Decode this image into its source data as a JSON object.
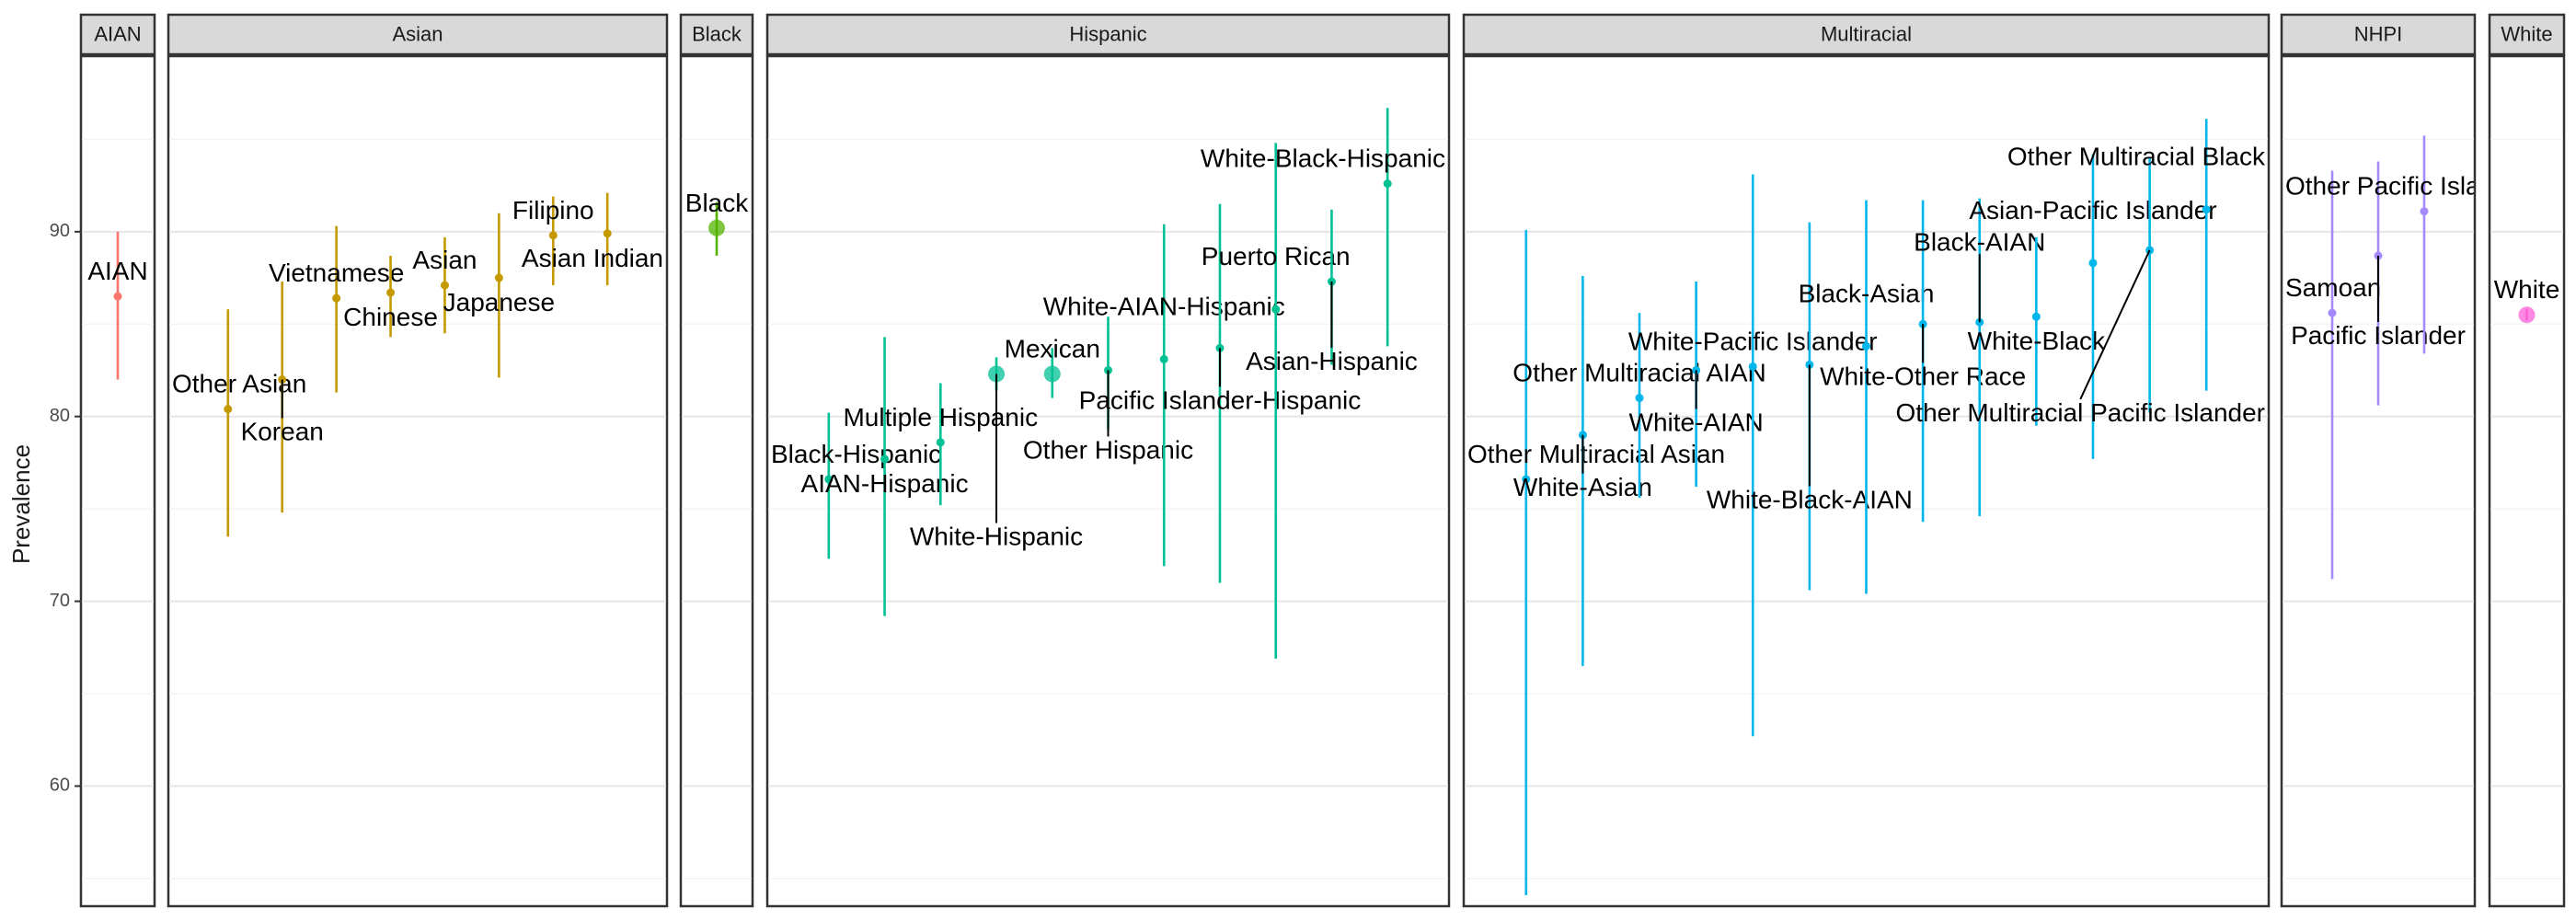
{
  "chart_data": {
    "type": "scatter",
    "ylabel": "Prevalence",
    "ylim": [
      53.5,
      99.5
    ],
    "yticks": [
      60,
      70,
      80,
      90
    ],
    "grid": true,
    "legend": "none",
    "panels": [
      {
        "name": "AIAN",
        "color": "#F8766D",
        "points": [
          {
            "label": "AIAN",
            "value": 86.5,
            "lower": 82.0,
            "upper": 90.0
          }
        ]
      },
      {
        "name": "Asian",
        "color": "#C49A00",
        "points": [
          {
            "label": "Other Asian",
            "value": 80.4,
            "lower": 73.5,
            "upper": 85.8
          },
          {
            "label": "Korean",
            "value": 82.0,
            "lower": 74.8,
            "upper": 87.3
          },
          {
            "label": "Vietnamese",
            "value": 86.4,
            "lower": 81.3,
            "upper": 90.3
          },
          {
            "label": "Chinese",
            "value": 86.7,
            "lower": 84.3,
            "upper": 88.7
          },
          {
            "label": "Asian",
            "value": 87.1,
            "lower": 84.5,
            "upper": 89.7
          },
          {
            "label": "Japanese",
            "value": 87.5,
            "lower": 82.1,
            "upper": 91.0
          },
          {
            "label": "Filipino",
            "value": 89.8,
            "lower": 87.1,
            "upper": 91.9
          },
          {
            "label": "Asian Indian",
            "value": 89.9,
            "lower": 87.1,
            "upper": 92.1
          }
        ]
      },
      {
        "name": "Black",
        "color": "#53B400",
        "points": [
          {
            "label": "Black",
            "value": 90.2,
            "lower": 88.7,
            "upper": 91.6
          }
        ]
      },
      {
        "name": "Hispanic",
        "color": "#00C094",
        "points": [
          {
            "label": "Black-Hispanic",
            "value": 76.6,
            "lower": 72.3,
            "upper": 80.2
          },
          {
            "label": "AIAN-Hispanic",
            "value": 77.7,
            "lower": 69.2,
            "upper": 84.3
          },
          {
            "label": "Multiple Hispanic",
            "value": 78.6,
            "lower": 75.2,
            "upper": 81.8
          },
          {
            "label": "White-Hispanic",
            "value": 82.3,
            "lower": 81.4,
            "upper": 83.2
          },
          {
            "label": "Mexican",
            "value": 82.3,
            "lower": 81.0,
            "upper": 83.7
          },
          {
            "label": "Other Hispanic",
            "value": 82.5,
            "lower": 79.3,
            "upper": 85.4
          },
          {
            "label": "White-AIAN-Hispanic",
            "value": 83.1,
            "lower": 71.9,
            "upper": 90.4
          },
          {
            "label": "Pacific Islander-Hispanic",
            "value": 83.7,
            "lower": 71.0,
            "upper": 91.5
          },
          {
            "label": "Puerto Rican",
            "value": 85.8,
            "lower": 66.9,
            "upper": 94.8
          },
          {
            "label": "Asian-Hispanic",
            "value": 87.3,
            "lower": 82.8,
            "upper": 91.2
          },
          {
            "label": "White-Black-Hispanic",
            "value": 92.6,
            "lower": 83.8,
            "upper": 96.7
          }
        ]
      },
      {
        "name": "Multiracial",
        "color": "#00B6EB",
        "points": [
          {
            "label": "Other Multiracial Asian",
            "value": 76.6,
            "lower": 54.1,
            "upper": 90.1
          },
          {
            "label": "White-Asian",
            "value": 79.0,
            "lower": 66.5,
            "upper": 87.6
          },
          {
            "label": "Other Multiracial AIAN",
            "value": 81.0,
            "lower": 75.6,
            "upper": 85.6
          },
          {
            "label": "White-AIAN",
            "value": 82.5,
            "lower": 76.2,
            "upper": 87.3
          },
          {
            "label": "White-Pacific Islander",
            "value": 82.7,
            "lower": 62.7,
            "upper": 93.1
          },
          {
            "label": "White-Black-AIAN",
            "value": 82.8,
            "lower": 70.6,
            "upper": 90.5
          },
          {
            "label": "Black-Asian",
            "value": 83.8,
            "lower": 70.4,
            "upper": 91.7
          },
          {
            "label": "White-Other Race",
            "value": 85.0,
            "lower": 74.3,
            "upper": 91.7
          },
          {
            "label": "Black-AIAN",
            "value": 85.1,
            "lower": 74.6,
            "upper": 91.8
          },
          {
            "label": "White-Black",
            "value": 85.4,
            "lower": 79.5,
            "upper": 89.7
          },
          {
            "label": "Asian-Pacific Islander",
            "value": 88.3,
            "lower": 77.7,
            "upper": 94.2
          },
          {
            "label": "Other Multiracial Pacific Islander",
            "value": 89.0,
            "lower": 80.2,
            "upper": 94.0
          },
          {
            "label": "Other Multiracial Black",
            "value": 91.2,
            "lower": 81.4,
            "upper": 96.1
          }
        ]
      },
      {
        "name": "NHPI",
        "color": "#A58AFF",
        "points": [
          {
            "label": "Samoan",
            "value": 85.6,
            "lower": 71.2,
            "upper": 93.3
          },
          {
            "label": "Pacific Islander",
            "value": 88.7,
            "lower": 80.6,
            "upper": 93.8
          },
          {
            "label": "Other Pacific Islander",
            "value": 91.1,
            "lower": 83.4,
            "upper": 95.2
          }
        ]
      },
      {
        "name": "White",
        "color": "#FB61D7",
        "points": [
          {
            "label": "White",
            "value": 85.5,
            "lower": 85.2,
            "upper": 85.8
          }
        ]
      }
    ]
  }
}
